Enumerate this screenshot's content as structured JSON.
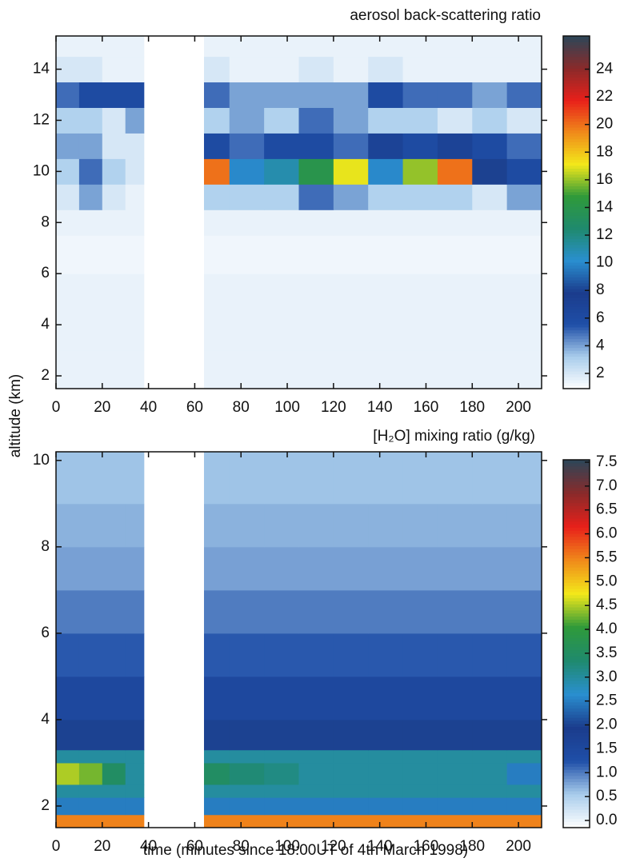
{
  "chart_data": [
    {
      "type": "heatmap",
      "title": "aerosol back-scattering ratio",
      "ylabel": "altitude (km)",
      "x_bins": [
        0,
        10,
        20,
        30,
        38,
        64,
        75,
        90,
        105,
        120,
        135,
        150,
        165,
        180,
        195,
        210
      ],
      "y_bins": [
        1.5,
        3,
        4.5,
        6,
        7.5,
        8.5,
        9.5,
        10.5,
        11.5,
        12.5,
        13.5,
        14.5,
        15.3
      ],
      "values": [
        [
          1.5,
          1.5,
          1.5,
          1.5,
          null,
          1.5,
          1.5,
          1.5,
          1.5,
          1.5,
          1.5,
          1.5,
          1.5,
          1.5,
          1.5
        ],
        [
          1.5,
          1.5,
          1.5,
          1.5,
          null,
          1.5,
          1.5,
          1.5,
          1.5,
          1.5,
          1.5,
          1.5,
          1.5,
          1.5,
          1.5
        ],
        [
          1.5,
          1.5,
          1.5,
          1.5,
          null,
          1.5,
          1.5,
          1.5,
          1.5,
          1.5,
          1.5,
          1.5,
          1.5,
          1.5,
          1.5
        ],
        [
          1.3,
          1.3,
          1.3,
          1.3,
          null,
          1.3,
          1.3,
          1.3,
          1.3,
          1.3,
          1.3,
          1.3,
          1.3,
          1.3,
          1.3
        ],
        [
          1.5,
          1.5,
          1.5,
          1.5,
          null,
          1.5,
          1.5,
          1.5,
          1.5,
          1.5,
          1.5,
          1.5,
          1.5,
          1.5,
          1.5
        ],
        [
          2,
          4,
          2,
          1.5,
          null,
          3,
          3,
          3,
          5,
          4,
          3,
          3,
          3,
          2,
          4
        ],
        [
          3,
          5,
          3,
          2,
          null,
          20,
          10,
          11,
          14,
          17,
          10,
          16,
          20,
          8,
          6
        ],
        [
          4,
          4,
          2,
          2,
          null,
          6,
          5,
          6,
          6,
          5,
          7,
          6,
          7,
          6,
          5
        ],
        [
          3,
          3,
          2,
          4,
          null,
          3,
          4,
          3,
          5,
          4,
          3,
          3,
          2,
          3,
          2
        ],
        [
          5,
          6,
          6,
          6,
          null,
          5,
          4,
          4,
          4,
          4,
          6,
          5,
          5,
          4,
          5
        ],
        [
          2,
          2,
          1.5,
          1.5,
          null,
          2,
          1.5,
          1.5,
          2,
          1.5,
          2,
          1.5,
          1.5,
          1.5,
          1.5
        ],
        [
          1.5,
          1.5,
          1.5,
          1.5,
          null,
          1.5,
          1.5,
          1.5,
          1.5,
          1.5,
          1.5,
          1.5,
          1.5,
          1.5,
          1.5
        ]
      ],
      "xlim": [
        0,
        210
      ],
      "xticks": [
        0,
        20,
        40,
        60,
        80,
        100,
        120,
        140,
        160,
        180,
        200
      ],
      "ylim": [
        1.5,
        15.3
      ],
      "yticks": [
        2,
        4,
        6,
        8,
        10,
        12,
        14
      ],
      "clim": [
        0.9,
        26.4
      ],
      "cticks": [
        2,
        4,
        6,
        8,
        10,
        12,
        14,
        16,
        18,
        20,
        22,
        24
      ],
      "colormap": [
        "#ffffff",
        "#a9cdec",
        "#1f4fa8",
        "#1b3c8c",
        "#2a8fd0",
        "#1f8a6e",
        "#2f9a3a",
        "#f3e81a",
        "#f08a1a",
        "#e8201a",
        "#8a2a2a",
        "#2c4658"
      ]
    },
    {
      "type": "heatmap",
      "title": "[H₂O] mixing ratio (g/kg)",
      "xlabel": "time (minutes since 18:00UT of 4th March 1998)",
      "x_bins": [
        0,
        10,
        20,
        30,
        38,
        64,
        75,
        90,
        105,
        120,
        135,
        150,
        165,
        180,
        195,
        210
      ],
      "y_bins": [
        1.5,
        1.8,
        2.2,
        2.5,
        3.0,
        3.3,
        4,
        5,
        6,
        7,
        8,
        9,
        10.2
      ],
      "values": [
        [
          5.5,
          5.5,
          5.5,
          5.5,
          null,
          5.5,
          5.5,
          5.5,
          5.5,
          5.5,
          5.5,
          5.5,
          5.5,
          5.5,
          5.5
        ],
        [
          2.5,
          2.5,
          2.5,
          2.5,
          null,
          2.5,
          2.5,
          2.5,
          2.5,
          2.5,
          2.5,
          2.5,
          2.5,
          2.5,
          2.5
        ],
        [
          3,
          3,
          3,
          3,
          null,
          3,
          3,
          3,
          3,
          3,
          3,
          3,
          3,
          3,
          3
        ],
        [
          4.5,
          4.3,
          3.5,
          3,
          null,
          3.5,
          3.3,
          3.2,
          3,
          3,
          3,
          3,
          3,
          3,
          2.5
        ],
        [
          3,
          3,
          3,
          3,
          null,
          3,
          3,
          3,
          3,
          3,
          3,
          3,
          3,
          3,
          3
        ],
        [
          2,
          2,
          2,
          2,
          null,
          2,
          2,
          2,
          2,
          2,
          2,
          2,
          2,
          2,
          2
        ],
        [
          1.5,
          1.5,
          1.5,
          1.5,
          null,
          1.5,
          1.5,
          1.5,
          1.5,
          1.5,
          1.5,
          1.5,
          1.5,
          1.5,
          1.5
        ],
        [
          1.2,
          1.2,
          1.2,
          1.2,
          null,
          1.2,
          1.2,
          1.2,
          1.2,
          1.2,
          1.2,
          1.2,
          1.2,
          1.2,
          1.2
        ],
        [
          1.0,
          1.0,
          1.0,
          1.0,
          null,
          1.0,
          1.0,
          1.0,
          1.0,
          1.0,
          1.0,
          1.0,
          1.0,
          1.0,
          1.0
        ],
        [
          0.8,
          0.8,
          0.8,
          0.8,
          null,
          0.8,
          0.8,
          0.8,
          0.8,
          0.8,
          0.8,
          0.8,
          0.8,
          0.8,
          0.8
        ],
        [
          0.7,
          0.7,
          0.7,
          0.7,
          null,
          0.7,
          0.7,
          0.7,
          0.7,
          0.7,
          0.7,
          0.7,
          0.7,
          0.7,
          0.7
        ],
        [
          0.6,
          0.6,
          0.6,
          0.6,
          null,
          0.6,
          0.6,
          0.6,
          0.6,
          0.6,
          0.6,
          0.6,
          0.6,
          0.6,
          0.6
        ]
      ],
      "xlim": [
        0,
        210
      ],
      "xticks": [
        0,
        20,
        40,
        60,
        80,
        100,
        120,
        140,
        160,
        180,
        200
      ],
      "ylim": [
        1.5,
        10.2
      ],
      "yticks": [
        2,
        4,
        6,
        8,
        10
      ],
      "clim": [
        -0.15,
        7.55
      ],
      "cticks": [
        {
          "value": 0,
          "label": "0.0"
        },
        {
          "value": 0.5,
          "label": "0.5"
        },
        {
          "value": 1,
          "label": "1.0"
        },
        {
          "value": 1.5,
          "label": "1.5"
        },
        {
          "value": 2,
          "label": "2.0"
        },
        {
          "value": 2.5,
          "label": "2.5"
        },
        {
          "value": 3,
          "label": "3.0"
        },
        {
          "value": 3.5,
          "label": "3.5"
        },
        {
          "value": 4,
          "label": "4.0"
        },
        {
          "value": 4.5,
          "label": "4.5"
        },
        {
          "value": 5,
          "label": "5.0"
        },
        {
          "value": 5.5,
          "label": "5.5"
        },
        {
          "value": 6,
          "label": "6.0"
        },
        {
          "value": 6.5,
          "label": "6.5"
        },
        {
          "value": 7,
          "label": "7.0"
        },
        {
          "value": 7.5,
          "label": "7.5"
        }
      ],
      "colormap": [
        "#ffffff",
        "#a9cdec",
        "#1f4fa8",
        "#1b3c8c",
        "#2a8fd0",
        "#1f8a6e",
        "#2f9a3a",
        "#f3e81a",
        "#f08a1a",
        "#e8201a",
        "#8a2a2a",
        "#2c4658"
      ]
    }
  ]
}
